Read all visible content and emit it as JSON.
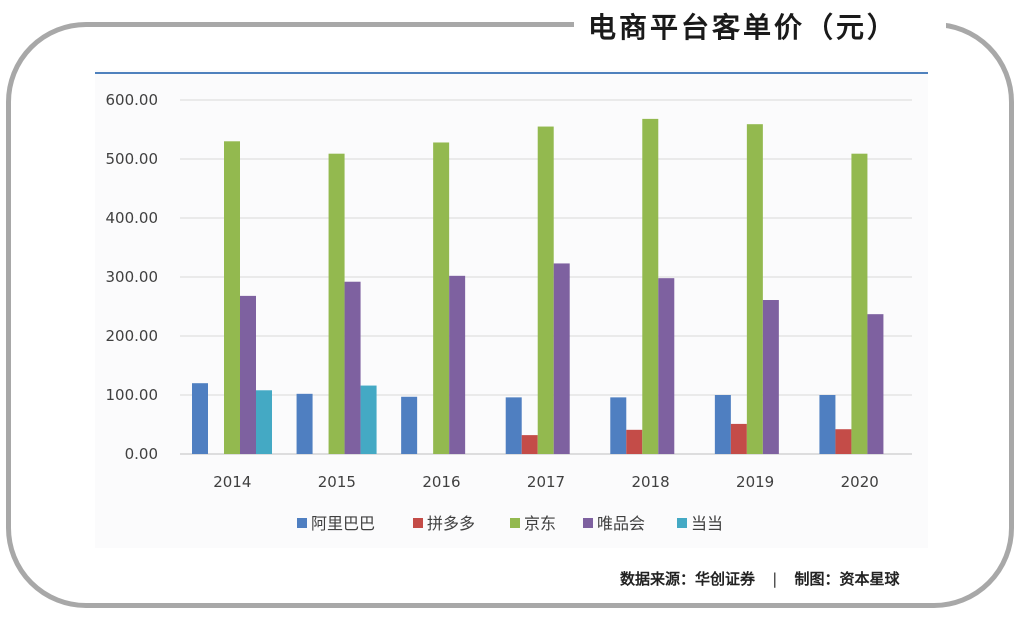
{
  "title": "电商平台客单价（元）",
  "footer": {
    "source": "数据来源：华创证券",
    "separator": "|",
    "made_by": "制图：资本星球"
  },
  "chart_data": {
    "type": "bar",
    "title": "电商平台客单价（元）",
    "xlabel": "",
    "ylabel": "",
    "categories": [
      "2014",
      "2015",
      "2016",
      "2017",
      "2018",
      "2019",
      "2020"
    ],
    "ylim": [
      0,
      600
    ],
    "yticks": [
      "0.00",
      "100.00",
      "200.00",
      "300.00",
      "400.00",
      "500.00",
      "600.00"
    ],
    "grid": true,
    "legend_position": "bottom",
    "series": [
      {
        "name": "阿里巴巴",
        "color": "#4f7fc1",
        "values": [
          120,
          102,
          97,
          96,
          96,
          100,
          100
        ]
      },
      {
        "name": "拼多多",
        "color": "#c44c48",
        "values": [
          null,
          null,
          null,
          32,
          41,
          51,
          42
        ]
      },
      {
        "name": "京东",
        "color": "#93b94f",
        "values": [
          530,
          509,
          528,
          555,
          568,
          559,
          509
        ]
      },
      {
        "name": "唯品会",
        "color": "#7e61a0",
        "values": [
          268,
          292,
          302,
          323,
          298,
          261,
          237
        ]
      },
      {
        "name": "当当",
        "color": "#44a9c4",
        "values": [
          108,
          116,
          null,
          null,
          null,
          null,
          null
        ]
      }
    ]
  }
}
